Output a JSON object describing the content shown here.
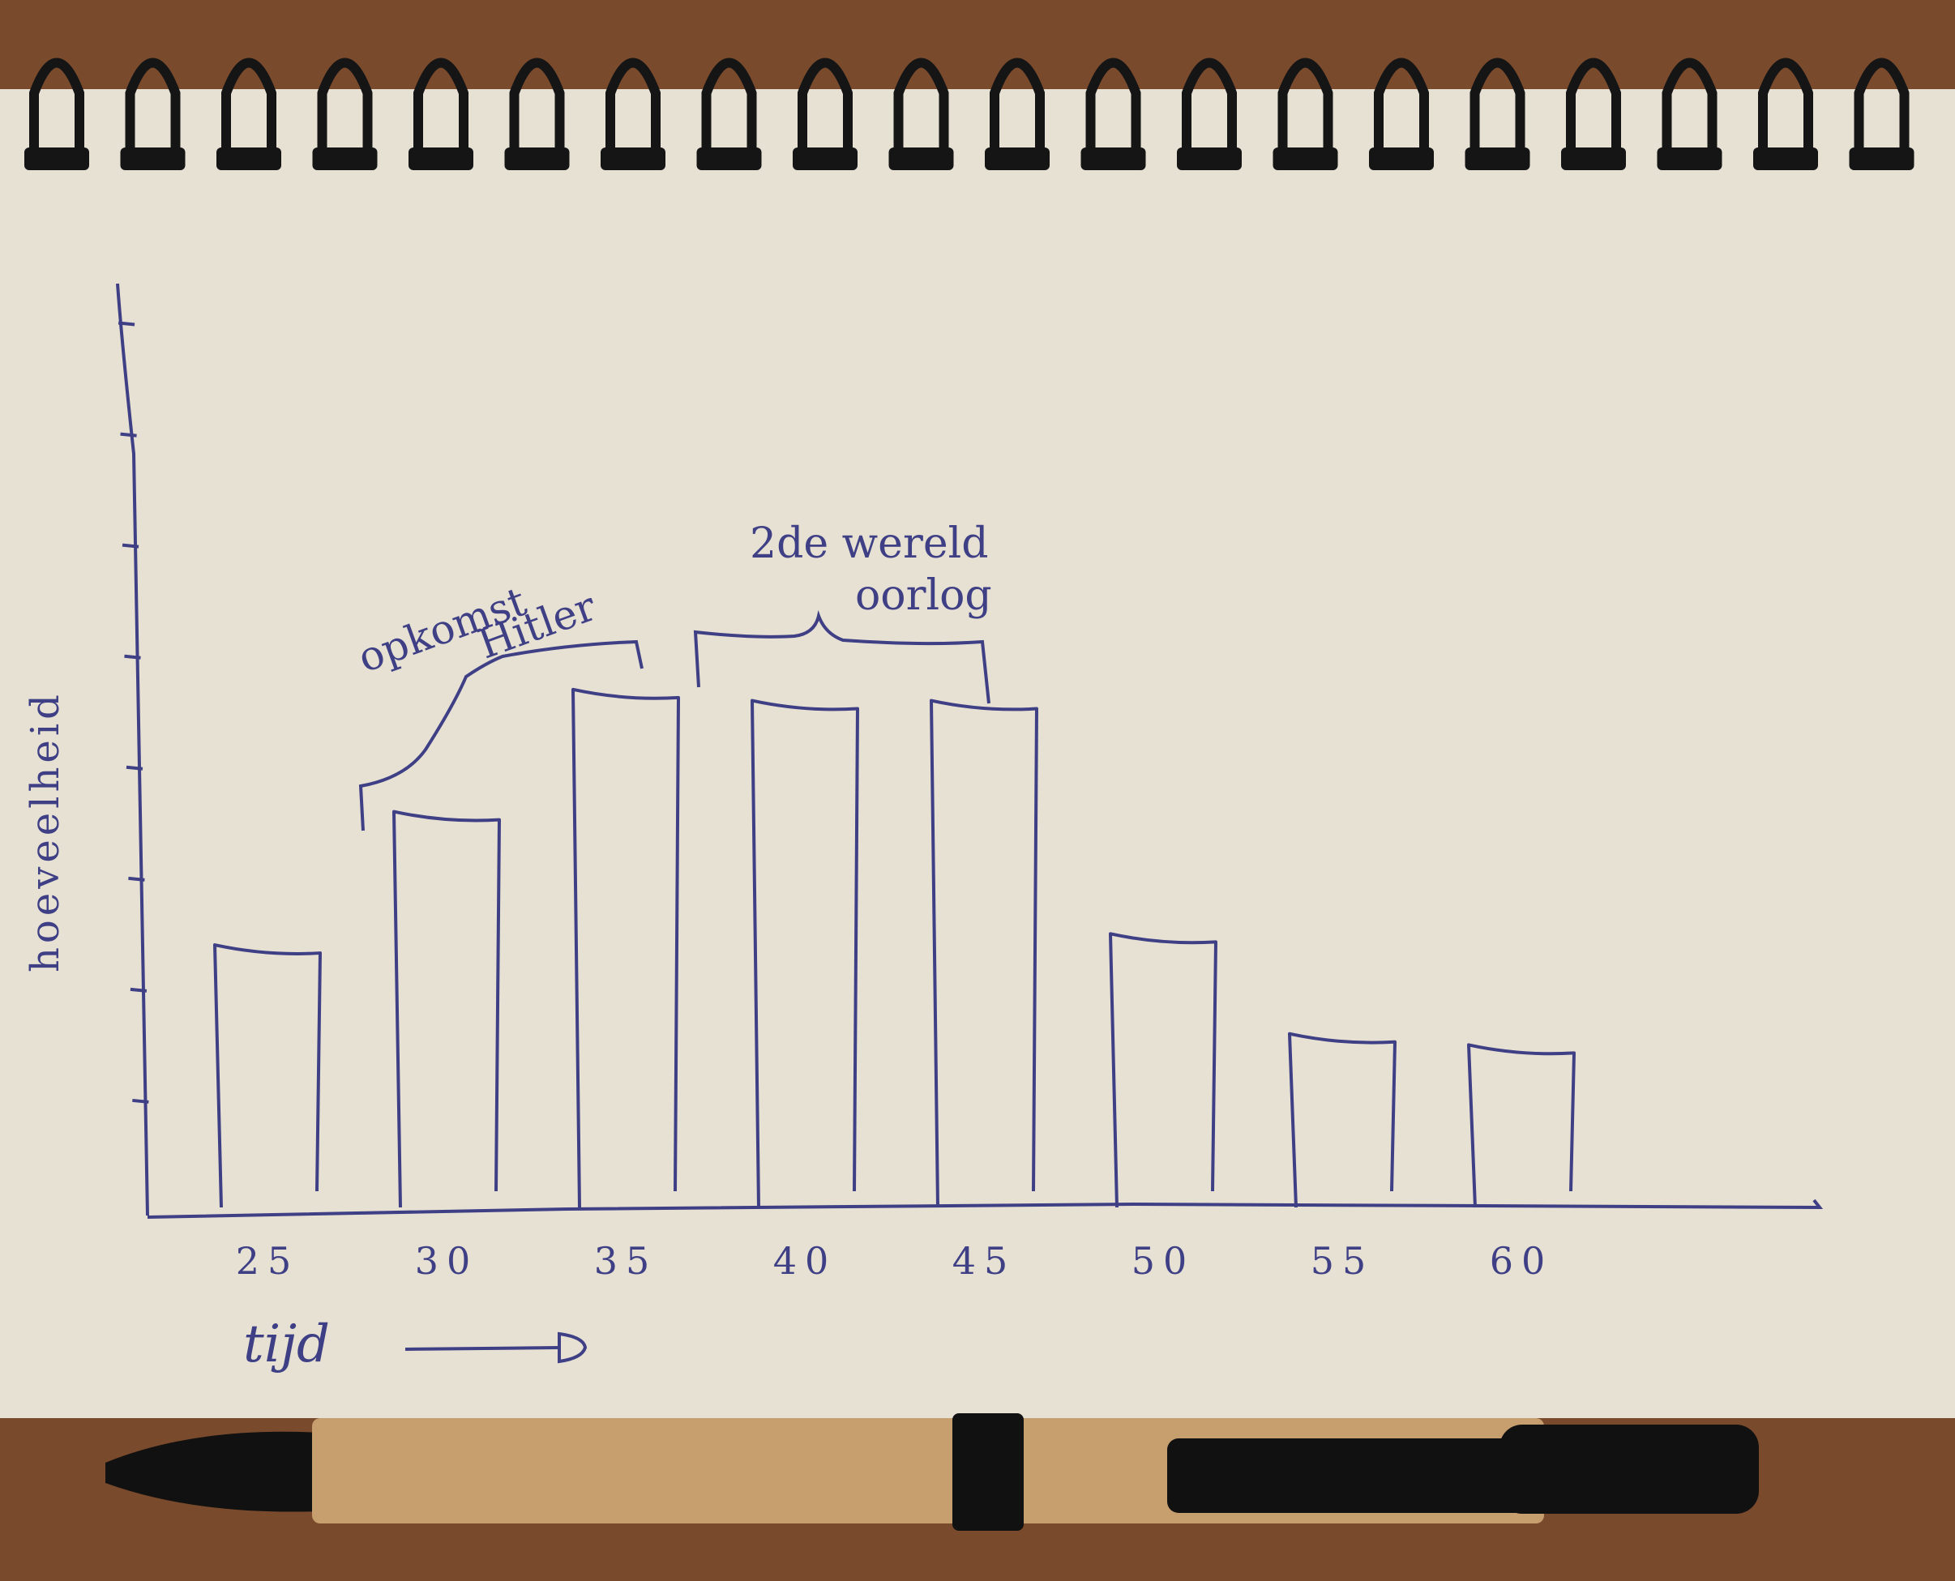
{
  "colors": {
    "ink": "#3f3f86",
    "paper": "#e6e1d3",
    "table": "#7a4a2c",
    "coil": "#151515",
    "pen_kraft": "#c79f6e",
    "pen_black": "#111111"
  },
  "objects": {
    "binding": "spiral-binding",
    "pen": "ballpoint-pen"
  },
  "chart_data": {
    "type": "bar",
    "xlabel": "tijd",
    "ylabel": "hoeveelheid",
    "categories": [
      "25",
      "30",
      "35",
      "40",
      "45",
      "50",
      "55",
      "60"
    ],
    "values": [
      2.4,
      3.6,
      4.7,
      4.6,
      4.6,
      2.5,
      1.6,
      1.5
    ],
    "ylim": [
      0,
      8.5
    ],
    "yticks": [
      1,
      2,
      3,
      4,
      5,
      6,
      7,
      8
    ],
    "grid": false,
    "legend": "none",
    "annotations": [
      {
        "label_lines": [
          "opkomst",
          "Hitler"
        ],
        "from": "30",
        "to": "35"
      },
      {
        "label_lines": [
          "2de wereld",
          "oorlog"
        ],
        "from": "40",
        "to": "45"
      }
    ]
  }
}
